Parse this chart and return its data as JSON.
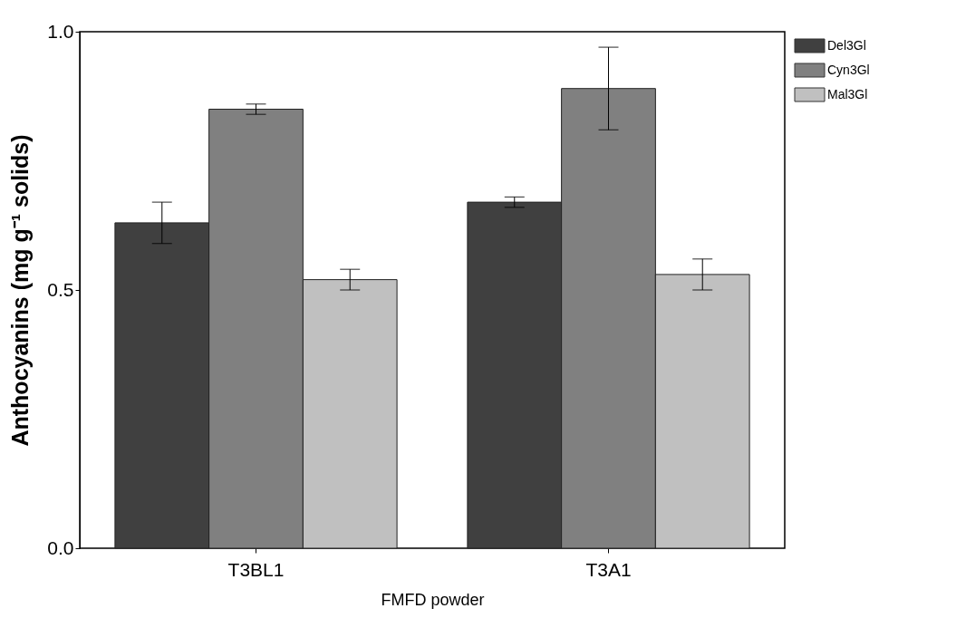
{
  "chart_data": {
    "type": "bar",
    "xlabel": "FMFD powder",
    "ylabel": "Anthocyanins (mg g⁻¹ solids)",
    "categories": [
      "T3BL1",
      "T3A1"
    ],
    "series": [
      {
        "name": "Del3Gl",
        "color": "#404040",
        "values": [
          0.63,
          0.67
        ],
        "errors": [
          0.04,
          0.01
        ]
      },
      {
        "name": "Cyn3Gl",
        "color": "#808080",
        "values": [
          0.85,
          0.89
        ],
        "errors": [
          0.01,
          0.08
        ]
      },
      {
        "name": "Mal3Gl",
        "color": "#c0c0c0",
        "values": [
          0.52,
          0.53
        ],
        "errors": [
          0.02,
          0.03
        ]
      }
    ],
    "ylim": [
      0,
      1
    ],
    "yticks": [
      {
        "value": 0,
        "label": "0.0"
      },
      {
        "value": 0.5,
        "label": "0.5"
      },
      {
        "value": 1,
        "label": "1.0"
      }
    ],
    "grid": false,
    "legend": "top right"
  }
}
